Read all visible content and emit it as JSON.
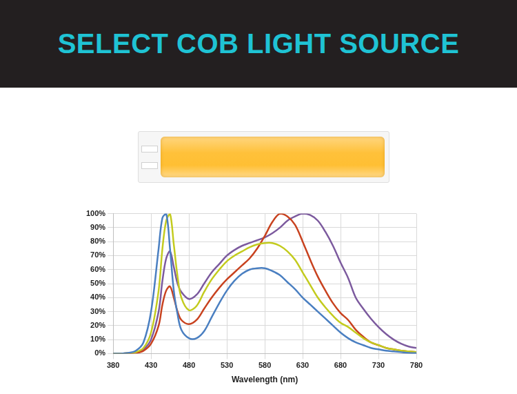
{
  "chart_data": {
    "type": "line",
    "title": "SELECT COB LIGHT SOURCE",
    "x_label": "Wavelength (nm)",
    "x": [
      380,
      390,
      400,
      410,
      420,
      430,
      440,
      445,
      450,
      455,
      460,
      465,
      470,
      480,
      490,
      500,
      510,
      520,
      530,
      540,
      550,
      560,
      570,
      580,
      590,
      600,
      610,
      620,
      630,
      640,
      650,
      660,
      670,
      680,
      690,
      700,
      710,
      720,
      730,
      740,
      750,
      760,
      770,
      780
    ],
    "series": [
      {
        "color": "#4a7fc1",
        "values": [
          0,
          0,
          0.5,
          2,
          8,
          30,
          75,
          97,
          100,
          75,
          45,
          28,
          17,
          11,
          11,
          16,
          26,
          36,
          45,
          52,
          57,
          60,
          61,
          61,
          59,
          56,
          51,
          46,
          40,
          35,
          30,
          25,
          20,
          15,
          11,
          8,
          6,
          4,
          3,
          2,
          1.5,
          1,
          0.5,
          0.3
        ]
      },
      {
        "color": "#c3cb1e",
        "values": [
          0,
          0,
          0.3,
          1,
          4,
          15,
          45,
          75,
          95,
          100,
          78,
          55,
          40,
          31,
          34,
          44,
          53,
          60,
          66,
          70,
          73,
          76,
          78,
          79,
          79,
          77,
          73,
          67,
          58,
          49,
          40,
          33,
          27,
          22,
          19,
          15,
          11,
          8,
          6,
          4,
          3,
          2,
          1.5,
          1
        ]
      },
      {
        "color": "#c8421f",
        "values": [
          0,
          0,
          0.2,
          0.5,
          2,
          7,
          20,
          35,
          45,
          48,
          40,
          30,
          24,
          21,
          24,
          32,
          40,
          47,
          53,
          58,
          63,
          68,
          75,
          84,
          94,
          100,
          98,
          92,
          80,
          67,
          55,
          45,
          36,
          29,
          24,
          17,
          12,
          8,
          6,
          4,
          3,
          2,
          1.5,
          1
        ]
      },
      {
        "color": "#7c5a9e",
        "values": [
          0,
          0,
          0.3,
          1,
          3,
          10,
          30,
          52,
          68,
          73,
          62,
          50,
          44,
          39,
          42,
          50,
          58,
          64,
          70,
          74,
          77,
          79,
          81,
          83,
          86,
          90,
          95,
          98,
          100,
          99,
          95,
          87,
          77,
          65,
          54,
          40,
          32,
          25,
          19,
          14,
          10,
          7,
          5,
          4
        ]
      }
    ],
    "xlim": [
      380,
      780
    ],
    "xticks": [
      380,
      430,
      480,
      530,
      580,
      630,
      680,
      730,
      780
    ],
    "ylim": [
      0,
      100
    ],
    "yticks": [
      {
        "value": 0,
        "label": "0%"
      },
      {
        "value": 10,
        "label": "10%"
      },
      {
        "value": 20,
        "label": "20%"
      },
      {
        "value": 30,
        "label": "30%"
      },
      {
        "value": 40,
        "label": "40%"
      },
      {
        "value": 50,
        "label": "50%"
      },
      {
        "value": 60,
        "label": "60%"
      },
      {
        "value": 70,
        "label": "70%"
      },
      {
        "value": 80,
        "label": "80%"
      },
      {
        "value": 90,
        "label": "90%"
      },
      {
        "value": 100,
        "label": "100%"
      }
    ],
    "grid": true
  }
}
